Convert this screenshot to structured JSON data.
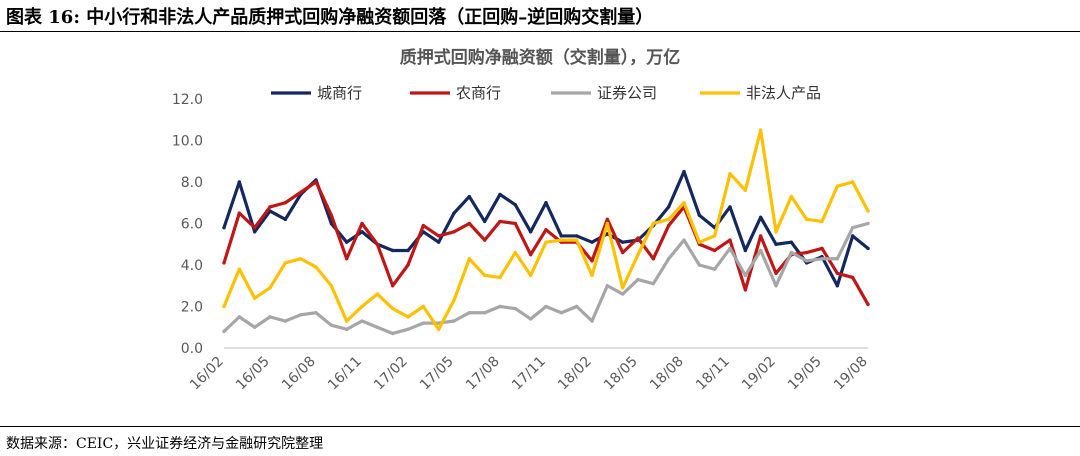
{
  "caption": "图表 16:  中小行和非法人产品质押式回购净融资额回落（正回购–逆回购交割量）",
  "source": "数据来源：CEIC，兴业证券经济与金融研究院整理",
  "chart_data": {
    "type": "line",
    "title": "质押式回购净融资额（交割量），万亿",
    "xlabel": "",
    "ylabel": "",
    "ylim": [
      0,
      12
    ],
    "yticks": [
      "0.0",
      "2.0",
      "4.0",
      "6.0",
      "8.0",
      "10.0",
      "12.0"
    ],
    "grid": false,
    "legend_position": "top",
    "x_tick_labels": [
      "16/02",
      "16/05",
      "16/08",
      "16/11",
      "17/02",
      "17/05",
      "17/08",
      "17/11",
      "18/02",
      "18/05",
      "18/08",
      "18/11",
      "19/02",
      "19/05",
      "19/08"
    ],
    "x": [
      "16/02",
      "16/03",
      "16/04",
      "16/05",
      "16/06",
      "16/07",
      "16/08",
      "16/09",
      "16/10",
      "16/11",
      "16/12",
      "17/01",
      "17/02",
      "17/03",
      "17/04",
      "17/05",
      "17/06",
      "17/07",
      "17/08",
      "17/09",
      "17/10",
      "17/11",
      "17/12",
      "18/01",
      "18/02",
      "18/03",
      "18/04",
      "18/05",
      "18/06",
      "18/07",
      "18/08",
      "18/09",
      "18/10",
      "18/11",
      "18/12",
      "19/01",
      "19/02",
      "19/03",
      "19/04",
      "19/05",
      "19/06",
      "19/07",
      "19/08"
    ],
    "series": [
      {
        "name": "城商行",
        "color": "#13285e",
        "values": [
          5.8,
          8.0,
          5.6,
          6.6,
          6.2,
          7.4,
          8.1,
          6.0,
          5.1,
          5.6,
          5.0,
          4.7,
          4.7,
          5.6,
          5.1,
          6.5,
          7.3,
          6.1,
          7.4,
          6.9,
          5.6,
          7.0,
          5.4,
          5.4,
          5.1,
          5.5,
          5.1,
          5.2,
          5.9,
          6.8,
          8.5,
          6.4,
          5.8,
          6.8,
          4.7,
          6.3,
          5.0,
          5.1,
          4.1,
          4.4,
          3.0,
          5.4,
          4.8
        ]
      },
      {
        "name": "农商行",
        "color": "#bf1616",
        "values": [
          4.1,
          6.5,
          5.8,
          6.8,
          7.0,
          7.5,
          8.0,
          6.4,
          4.3,
          6.0,
          5.0,
          3.0,
          4.0,
          5.9,
          5.4,
          5.6,
          6.0,
          5.2,
          6.1,
          6.0,
          4.5,
          5.7,
          5.1,
          5.1,
          4.2,
          6.2,
          4.6,
          5.3,
          4.3,
          5.9,
          6.8,
          5.0,
          4.7,
          5.2,
          2.8,
          5.4,
          3.6,
          4.5,
          4.6,
          4.8,
          3.6,
          3.4,
          2.1
        ]
      },
      {
        "name": "证券公司",
        "color": "#a6a6a6",
        "values": [
          0.8,
          1.5,
          1.0,
          1.5,
          1.3,
          1.6,
          1.7,
          1.1,
          0.9,
          1.3,
          1.0,
          0.7,
          0.9,
          1.2,
          1.2,
          1.3,
          1.7,
          1.7,
          2.0,
          1.9,
          1.4,
          2.0,
          1.7,
          2.0,
          1.3,
          3.0,
          2.6,
          3.3,
          3.1,
          4.3,
          5.2,
          4.0,
          3.8,
          4.8,
          3.5,
          4.7,
          3.0,
          4.6,
          4.2,
          4.3,
          4.3,
          5.8,
          6.0
        ]
      },
      {
        "name": "非法人产品",
        "color": "#ffc000",
        "values": [
          2.0,
          3.8,
          2.4,
          2.9,
          4.1,
          4.3,
          3.9,
          3.0,
          1.3,
          2.0,
          2.6,
          1.9,
          1.5,
          2.0,
          0.9,
          2.3,
          4.3,
          3.5,
          3.4,
          4.6,
          3.5,
          5.1,
          5.2,
          5.2,
          3.5,
          6.0,
          2.9,
          4.5,
          6.0,
          6.2,
          7.0,
          5.1,
          5.4,
          8.4,
          7.6,
          10.5,
          5.6,
          7.3,
          6.2,
          6.1,
          7.8,
          8.0,
          6.6
        ]
      }
    ]
  }
}
